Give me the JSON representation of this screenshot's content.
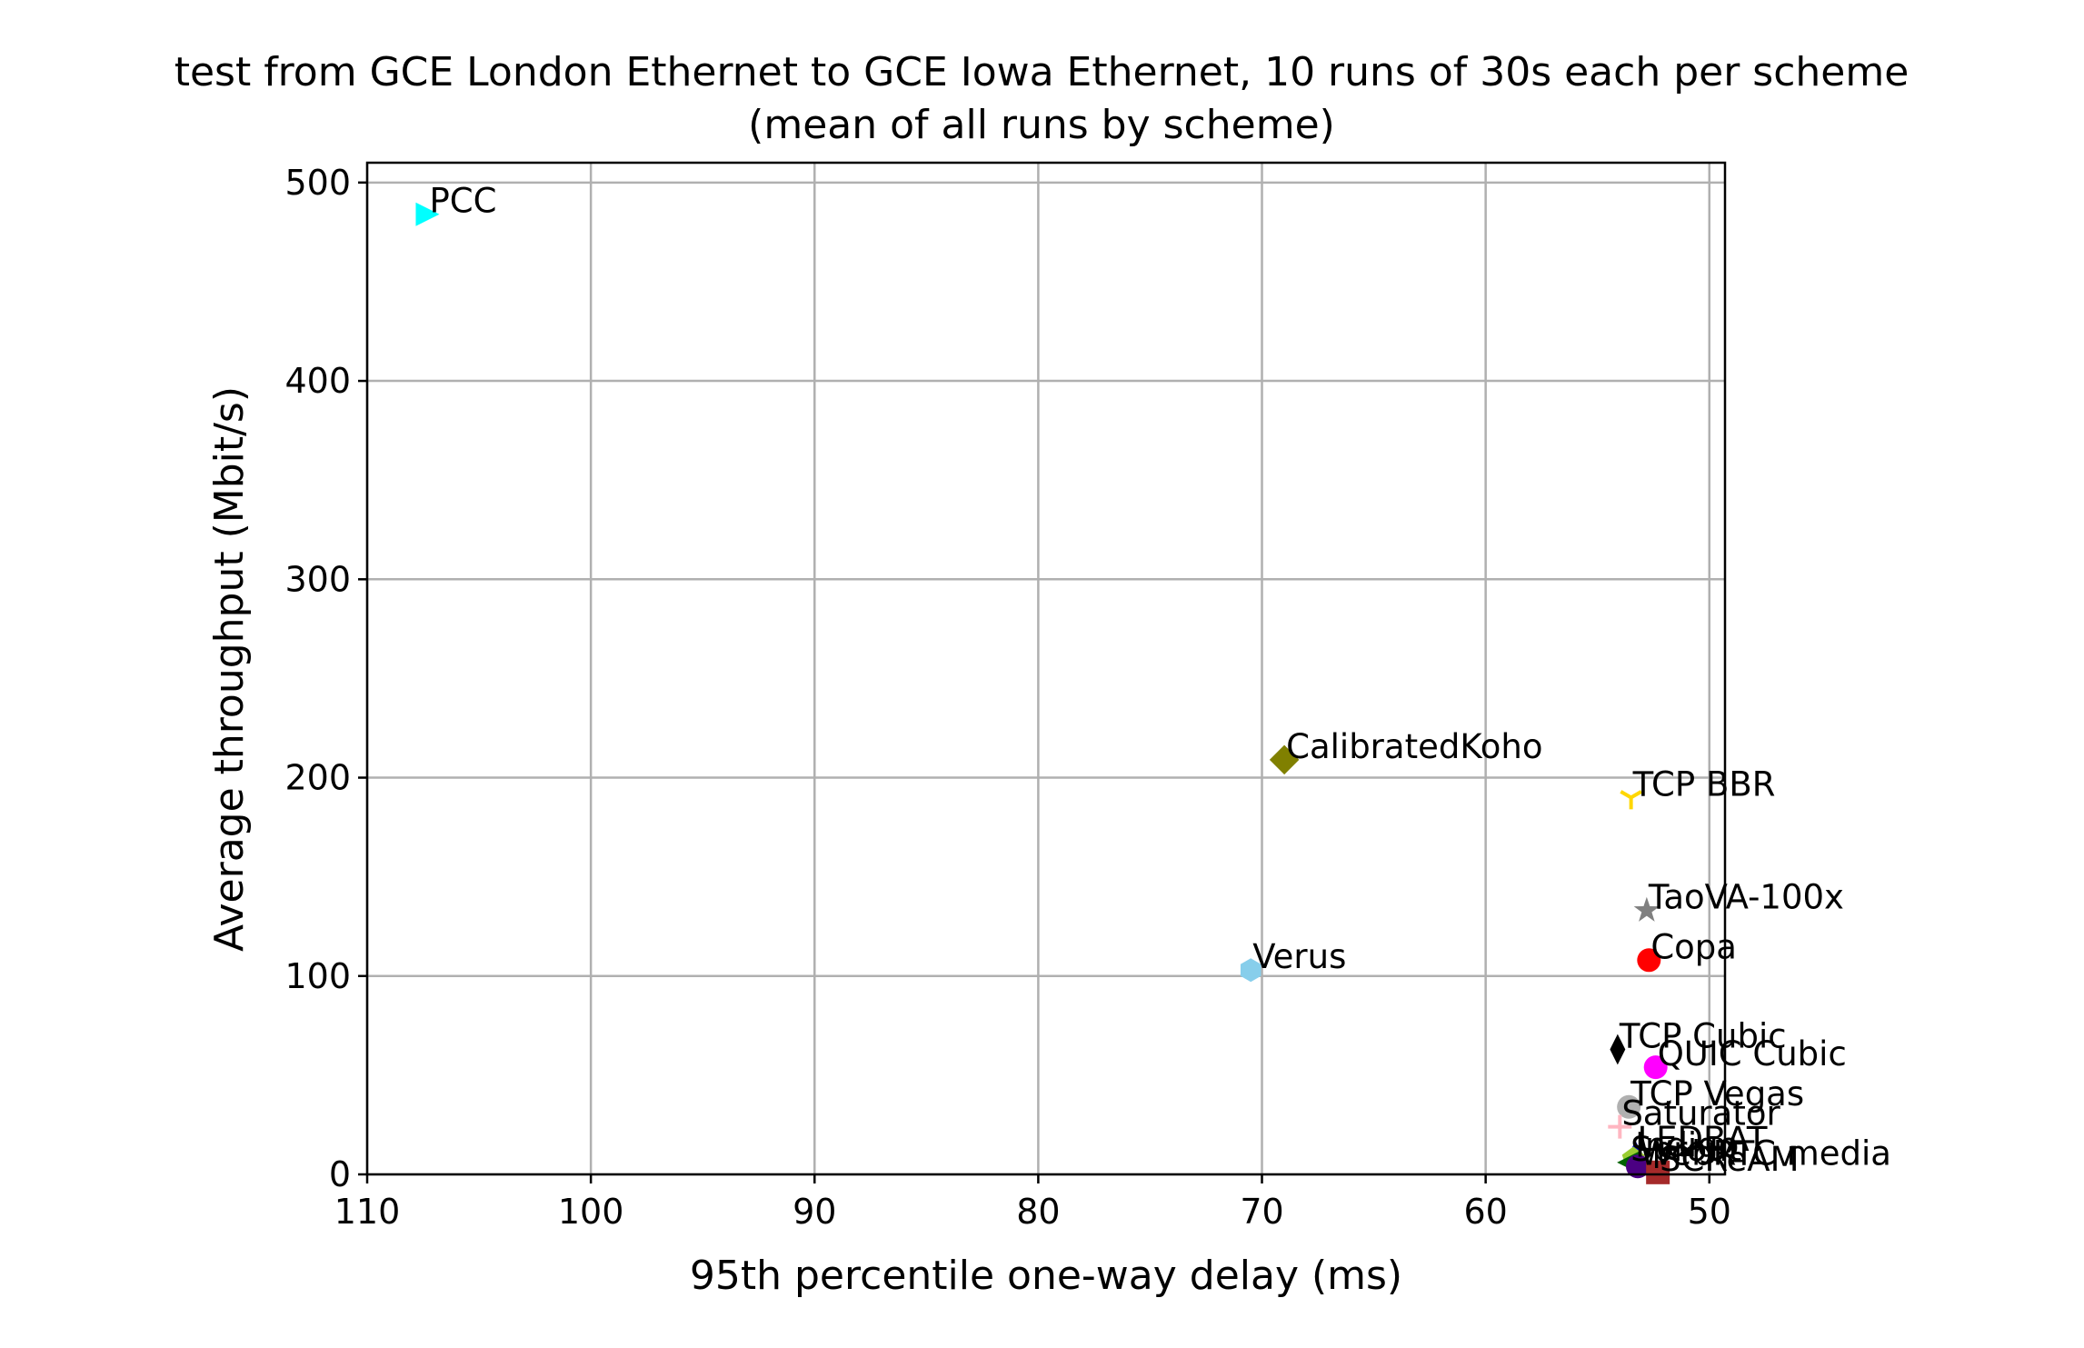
{
  "chart_data": {
    "type": "scatter",
    "title": "test from GCE London Ethernet to GCE Iowa Ethernet, 10 runs of 30s each per scheme",
    "subtitle": "(mean of all runs by scheme)",
    "xlabel": "95th percentile one-way delay (ms)",
    "ylabel": "Average throughput (Mbit/s)",
    "xlim": [
      110,
      49.3
    ],
    "ylim": [
      0,
      510
    ],
    "x_inverted": true,
    "grid": true,
    "xticks": [
      110,
      100,
      90,
      80,
      70,
      60,
      50
    ],
    "yticks": [
      0,
      100,
      200,
      300,
      400,
      500
    ],
    "points": [
      {
        "label": "PCC",
        "x": 107.3,
        "y": 484,
        "marker": "triangle-right",
        "color": "#00ffff"
      },
      {
        "label": "CalibratedKoho",
        "x": 69.0,
        "y": 209,
        "marker": "diamond",
        "color": "#808000"
      },
      {
        "label": "TCP BBR",
        "x": 53.5,
        "y": 190,
        "marker": "tri-down",
        "color": "#ffd700"
      },
      {
        "label": "TaoVA-100x",
        "x": 52.8,
        "y": 133,
        "marker": "star",
        "color": "#808080"
      },
      {
        "label": "Copa",
        "x": 52.7,
        "y": 108,
        "marker": "circle",
        "color": "#ff0000"
      },
      {
        "label": "Verus",
        "x": 70.5,
        "y": 103,
        "marker": "hexagon",
        "color": "#87ceeb"
      },
      {
        "label": "TCP Cubic",
        "x": 54.1,
        "y": 63,
        "marker": "thin-diamond",
        "color": "#000000"
      },
      {
        "label": "QUIC Cubic",
        "x": 52.4,
        "y": 54,
        "marker": "circle",
        "color": "#ff00ff"
      },
      {
        "label": "TCP Vegas",
        "x": 53.6,
        "y": 34,
        "marker": "circle",
        "color": "#b0b0b0"
      },
      {
        "label": "Saturator",
        "x": 54.0,
        "y": 24,
        "marker": "plus",
        "color": "#ffb6c1"
      },
      {
        "label": "LEDBAT",
        "x": 53.3,
        "y": 11,
        "marker": "triangle-up",
        "color": "#0000cd"
      },
      {
        "label": "Indigo",
        "x": 53.4,
        "y": 8,
        "marker": "pentagon",
        "color": "#9acd32"
      },
      {
        "label": "Sprout",
        "x": 53.6,
        "y": 6,
        "marker": "triangle-left",
        "color": "#006400"
      },
      {
        "label": "WebRTC media",
        "x": 53.2,
        "y": 4,
        "marker": "circle",
        "color": "#4b0082"
      },
      {
        "label": "SCReAM",
        "x": 52.3,
        "y": 1,
        "marker": "square",
        "color": "#a52a2a"
      }
    ]
  }
}
